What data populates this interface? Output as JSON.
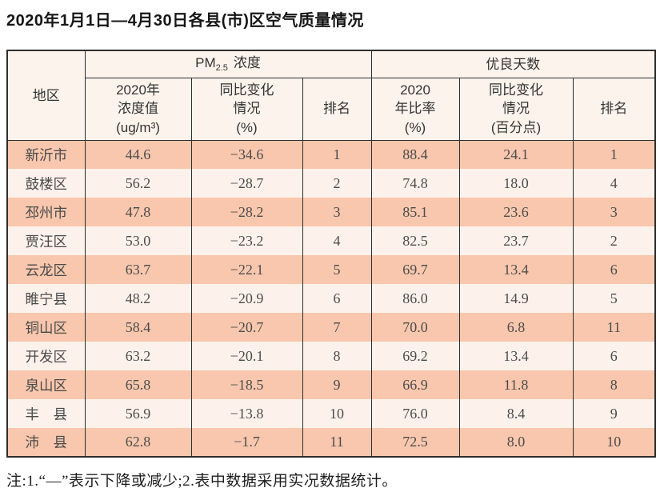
{
  "title": "2020年1月1日—4月30日各县(市)区空气质量情况",
  "table": {
    "region_header": "地区",
    "group_pm25": {
      "prefix": "PM",
      "sub": "2.5",
      "suffix": "浓度"
    },
    "group_good_days": "优良天数",
    "sub_headers": {
      "pm25_value": "2020年\n浓度值\n(ug/m³)",
      "pm25_change": "同比变化\n情况\n(%)",
      "pm25_rank": "排名",
      "good_rate": "2020\n年比率\n(%)",
      "good_change": "同比变化\n情况\n(百分点)",
      "good_rank": "排名"
    },
    "rows": [
      {
        "region": "新沂市",
        "pm25_value": "44.6",
        "pm25_change": "−34.6",
        "pm25_rank": "1",
        "good_rate": "88.4",
        "good_change": "24.1",
        "good_rank": "1"
      },
      {
        "region": "鼓楼区",
        "pm25_value": "56.2",
        "pm25_change": "−28.7",
        "pm25_rank": "2",
        "good_rate": "74.8",
        "good_change": "18.0",
        "good_rank": "4"
      },
      {
        "region": "邳州市",
        "pm25_value": "47.8",
        "pm25_change": "−28.2",
        "pm25_rank": "3",
        "good_rate": "85.1",
        "good_change": "23.6",
        "good_rank": "3"
      },
      {
        "region": "贾汪区",
        "pm25_value": "53.0",
        "pm25_change": "−23.2",
        "pm25_rank": "4",
        "good_rate": "82.5",
        "good_change": "23.7",
        "good_rank": "2"
      },
      {
        "region": "云龙区",
        "pm25_value": "63.7",
        "pm25_change": "−22.1",
        "pm25_rank": "5",
        "good_rate": "69.7",
        "good_change": "13.4",
        "good_rank": "6"
      },
      {
        "region": "睢宁县",
        "pm25_value": "48.2",
        "pm25_change": "−20.9",
        "pm25_rank": "6",
        "good_rate": "86.0",
        "good_change": "14.9",
        "good_rank": "5"
      },
      {
        "region": "铜山区",
        "pm25_value": "58.4",
        "pm25_change": "−20.7",
        "pm25_rank": "7",
        "good_rate": "70.0",
        "good_change": "6.8",
        "good_rank": "11"
      },
      {
        "region": "开发区",
        "pm25_value": "63.2",
        "pm25_change": "−20.1",
        "pm25_rank": "8",
        "good_rate": "69.2",
        "good_change": "13.4",
        "good_rank": "6"
      },
      {
        "region": "泉山区",
        "pm25_value": "65.8",
        "pm25_change": "−18.5",
        "pm25_rank": "9",
        "good_rate": "66.9",
        "good_change": "11.8",
        "good_rank": "8"
      },
      {
        "region": "丰　县",
        "pm25_value": "56.9",
        "pm25_change": "−13.8",
        "pm25_rank": "10",
        "good_rate": "76.0",
        "good_change": "8.4",
        "good_rank": "9"
      },
      {
        "region": "沛　县",
        "pm25_value": "62.8",
        "pm25_change": "−1.7",
        "pm25_rank": "11",
        "good_rate": "72.5",
        "good_change": "8.0",
        "good_rank": "10"
      }
    ]
  },
  "note": "注:1.“—”表示下降或减少;2.表中数据采用实况数据统计。",
  "colors": {
    "row_odd_bg": "#f8c7ad",
    "row_even_bg": "#fdf2eb",
    "header_bg": "#fcf4ec",
    "border": "#2e2e2e",
    "text": "#4c4c4c"
  }
}
